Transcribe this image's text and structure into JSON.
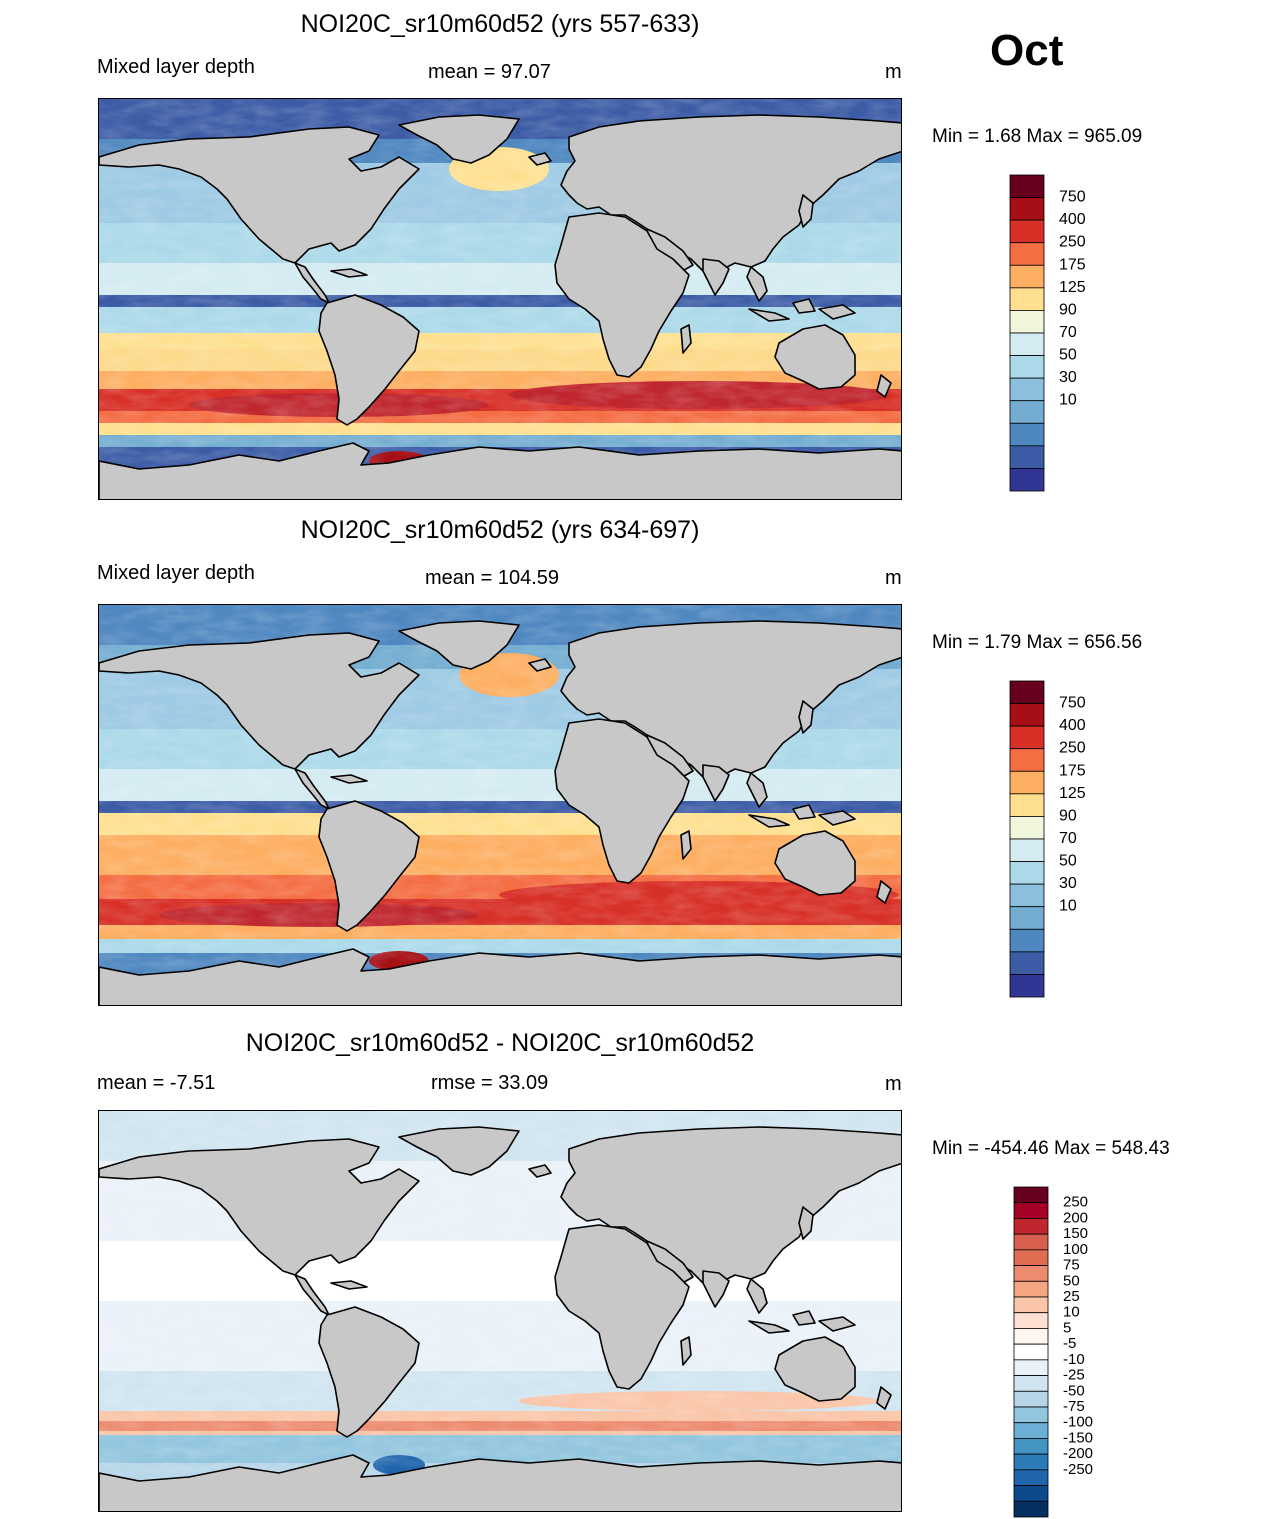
{
  "month": "Oct",
  "panels": [
    {
      "title": "NOI20C_sr10m60d52 (yrs 557-633)",
      "left_label": "Mixed layer depth",
      "center_label": "mean =  97.07",
      "units": "m",
      "minmax": "Min =    1.68 Max = 965.09",
      "kind": "depth"
    },
    {
      "title": "NOI20C_sr10m60d52 (yrs 634-697)",
      "left_label": "Mixed layer depth",
      "center_label": "mean = 104.59",
      "units": "m",
      "minmax": "Min =    1.79 Max = 656.56",
      "kind": "depth"
    },
    {
      "title": "NOI20C_sr10m60d52 - NOI20C_sr10m60d52",
      "left_label": "mean =  -7.51",
      "center_label": "rmse =  33.09",
      "units": "m",
      "minmax": "Min = -454.46 Max = 548.43",
      "kind": "diff"
    }
  ],
  "colorbars": {
    "depth": {
      "labels": [
        "750",
        "400",
        "250",
        "175",
        "125",
        "90",
        "70",
        "50",
        "30",
        "10"
      ],
      "colors": [
        "#67001f",
        "#a50f15",
        "#d73027",
        "#f46d43",
        "#fdae61",
        "#fee090",
        "#f0f6dc",
        "#d4ebf2",
        "#abd9e9",
        "#8cbfdd",
        "#74add1",
        "#4f87c0",
        "#3c5ca6",
        "#313695"
      ]
    },
    "diff": {
      "labels": [
        "250",
        "200",
        "150",
        "100",
        "75",
        "50",
        "25",
        "10",
        "5",
        "-5",
        "-10",
        "-25",
        "-50",
        "-75",
        "-100",
        "-150",
        "-200",
        "-250"
      ],
      "colors": [
        "#67001f",
        "#a50026",
        "#c0262e",
        "#d6604d",
        "#e06c52",
        "#ec8b6f",
        "#f4a582",
        "#fac5a8",
        "#fde0d2",
        "#fff5f0",
        "#ffffff",
        "#eaf1f8",
        "#d1e5f0",
        "#b6d6e8",
        "#92c5de",
        "#6baed6",
        "#4393c3",
        "#2c7bb6",
        "#2166ac",
        "#0c4a8c",
        "#053061"
      ]
    }
  },
  "chart_data": [
    {
      "type": "heatmap",
      "title": "NOI20C_sr10m60d52 (yrs 557-633)",
      "variable": "Mixed layer depth",
      "units": "m",
      "mean": 97.07,
      "min": 1.68,
      "max": 965.09,
      "month": "Oct",
      "colorbar_levels": [
        10,
        30,
        50,
        70,
        90,
        125,
        175,
        250,
        400,
        750
      ]
    },
    {
      "type": "heatmap",
      "title": "NOI20C_sr10m60d52 (yrs 634-697)",
      "variable": "Mixed layer depth",
      "units": "m",
      "mean": 104.59,
      "min": 1.79,
      "max": 656.56,
      "month": "Oct",
      "colorbar_levels": [
        10,
        30,
        50,
        70,
        90,
        125,
        175,
        250,
        400,
        750
      ]
    },
    {
      "type": "heatmap",
      "title": "NOI20C_sr10m60d52 - NOI20C_sr10m60d52",
      "units": "m",
      "mean": -7.51,
      "rmse": 33.09,
      "min": -454.46,
      "max": 548.43,
      "month": "Oct",
      "colorbar_levels": [
        -250,
        -200,
        -150,
        -100,
        -75,
        -50,
        -25,
        -10,
        -5,
        5,
        10,
        25,
        50,
        75,
        100,
        150,
        200,
        250
      ]
    }
  ]
}
